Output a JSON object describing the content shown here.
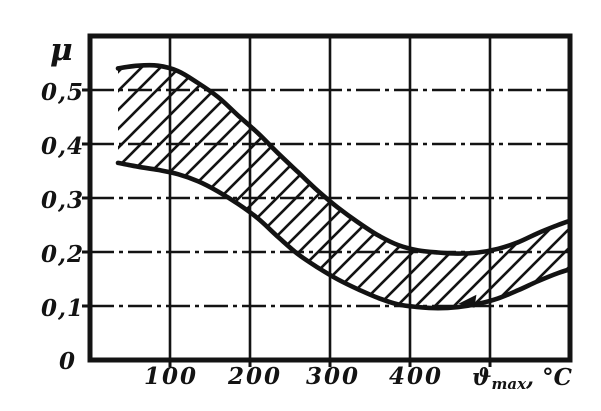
{
  "chart_data": {
    "type": "area",
    "title": "",
    "ylabel": "μ",
    "xlabel_prefix": "ϑ",
    "xlabel_sub": "max",
    "xlabel_suffix": ", °C",
    "xlim": [
      0,
      600
    ],
    "ylim": [
      0,
      0.6
    ],
    "grid": true,
    "legend": false,
    "x_gridlines": [
      100,
      200,
      300,
      400,
      500
    ],
    "y_gridlines": [
      0.1,
      0.2,
      0.3,
      0.4,
      0.5
    ],
    "xticks": [
      {
        "value": 100,
        "label": "100"
      },
      {
        "value": 200,
        "label": "200"
      },
      {
        "value": 300,
        "label": "300"
      },
      {
        "value": 400,
        "label": "400"
      }
    ],
    "yticks": [
      {
        "value": 0.5,
        "label": "0,5"
      },
      {
        "value": 0.4,
        "label": "0,4"
      },
      {
        "value": 0.3,
        "label": "0,3"
      },
      {
        "value": 0.2,
        "label": "0,2"
      },
      {
        "value": 0.1,
        "label": "0,1"
      },
      {
        "value": 0.0,
        "label": "0"
      }
    ],
    "band_fill": "diagonal-hatch",
    "ink_color": "#131313",
    "series": [
      {
        "name": "upper-boundary",
        "points": [
          [
            35,
            0.54
          ],
          [
            60,
            0.545
          ],
          [
            85,
            0.545
          ],
          [
            110,
            0.535
          ],
          [
            135,
            0.513
          ],
          [
            160,
            0.487
          ],
          [
            185,
            0.453
          ],
          [
            210,
            0.42
          ],
          [
            235,
            0.383
          ],
          [
            260,
            0.348
          ],
          [
            285,
            0.313
          ],
          [
            310,
            0.282
          ],
          [
            335,
            0.255
          ],
          [
            360,
            0.231
          ],
          [
            385,
            0.213
          ],
          [
            410,
            0.203
          ],
          [
            435,
            0.199
          ],
          [
            460,
            0.197
          ],
          [
            485,
            0.199
          ],
          [
            510,
            0.206
          ],
          [
            535,
            0.218
          ],
          [
            560,
            0.235
          ],
          [
            585,
            0.25
          ],
          [
            600,
            0.258
          ]
        ]
      },
      {
        "name": "lower-boundary",
        "points": [
          [
            35,
            0.365
          ],
          [
            60,
            0.358
          ],
          [
            85,
            0.352
          ],
          [
            110,
            0.344
          ],
          [
            135,
            0.331
          ],
          [
            160,
            0.312
          ],
          [
            185,
            0.289
          ],
          [
            210,
            0.262
          ],
          [
            235,
            0.228
          ],
          [
            260,
            0.196
          ],
          [
            285,
            0.171
          ],
          [
            310,
            0.149
          ],
          [
            335,
            0.131
          ],
          [
            360,
            0.115
          ],
          [
            385,
            0.103
          ],
          [
            410,
            0.098
          ],
          [
            435,
            0.096
          ],
          [
            460,
            0.098
          ],
          [
            485,
            0.104
          ],
          [
            510,
            0.114
          ],
          [
            535,
            0.129
          ],
          [
            560,
            0.146
          ],
          [
            585,
            0.161
          ],
          [
            600,
            0.168
          ]
        ]
      }
    ],
    "annotation_arrow": {
      "x": 473,
      "y": 0.108,
      "direction": "left"
    }
  }
}
